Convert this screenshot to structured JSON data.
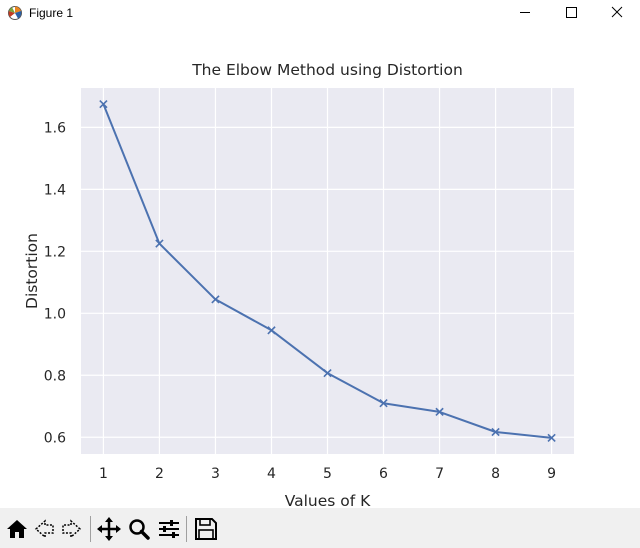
{
  "window": {
    "title": "Figure 1",
    "icons": [
      "matplotlib-figure-icon",
      "minimize-icon",
      "maximize-icon",
      "close-icon"
    ]
  },
  "toolbar": {
    "icons": [
      "home-icon",
      "back-icon",
      "forward-icon",
      "pan-icon",
      "zoom-icon",
      "configure-subplots-icon",
      "save-icon"
    ]
  },
  "colors": {
    "axes_background": "#eaeaf2",
    "grid": "#ffffff",
    "line": "#4c72b0",
    "toolbar_background": "#f0f0f0"
  },
  "chart_data": {
    "type": "line",
    "title": "The Elbow Method using Distortion",
    "xlabel": "Values of K",
    "ylabel": "Distortion",
    "marker": "x",
    "grid": true,
    "x": [
      1,
      2,
      3,
      4,
      5,
      6,
      7,
      8,
      9
    ],
    "y": [
      1.675,
      1.225,
      1.045,
      0.945,
      0.807,
      0.71,
      0.682,
      0.617,
      0.598
    ],
    "xlim": [
      0.6,
      9.4
    ],
    "ylim": [
      0.546,
      1.727
    ],
    "xticks": [
      1,
      2,
      3,
      4,
      5,
      6,
      7,
      8,
      9
    ],
    "yticks": [
      0.6,
      0.8,
      1.0,
      1.2,
      1.4,
      1.6
    ],
    "ytick_labels": [
      "0.6",
      "0.8",
      "1.0",
      "1.2",
      "1.4",
      "1.6"
    ],
    "legend": "none"
  }
}
